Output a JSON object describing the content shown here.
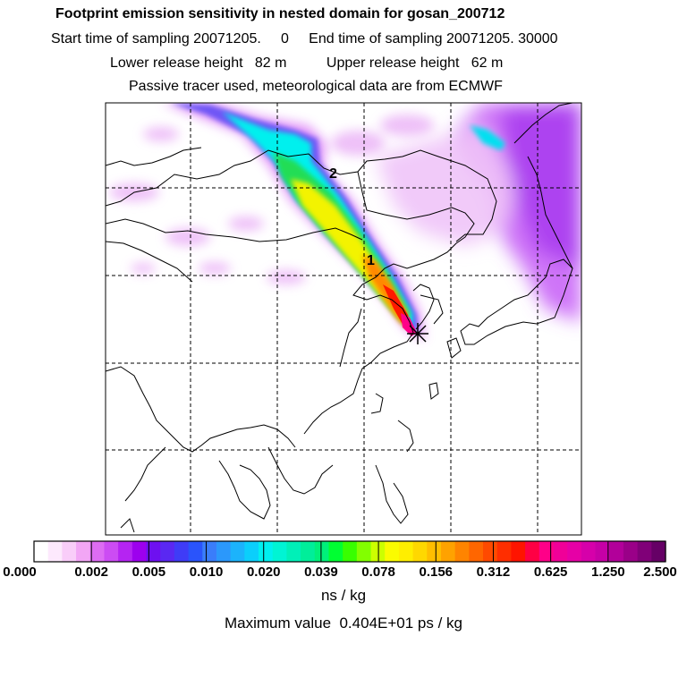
{
  "header": {
    "title": "Footprint emission sensitivity in nested domain for gosan_200712",
    "line1": "Start time of sampling 20071205.     0     End time of sampling 20071205. 30000",
    "line2": "Lower release height   82 m          Upper release height   62 m",
    "line3": "Passive tracer used, meteorological data are from ECMWF"
  },
  "map": {
    "track_labels": [
      "2",
      "1"
    ],
    "colors": {
      "plume_core": "#ff0000",
      "plume_yellow": "#ffee00",
      "plume_green": "#22dd22",
      "plume_cyan": "#00ffee",
      "haze_purple": "#cc66ff",
      "coastline": "#000000"
    }
  },
  "colorbar": {
    "tick_labels": [
      "0.000",
      "0.002",
      "0.005",
      "0.010",
      "0.020",
      "0.039",
      "0.078",
      "0.156",
      "0.312",
      "0.625",
      "1.250",
      "2.500"
    ],
    "segment_colors": [
      "#ffffff",
      "#fde9fd",
      "#f9cdf9",
      "#f2a6f5",
      "#dd6cf3",
      "#cc4cf3",
      "#b524f2",
      "#9d00ee",
      "#6e10f0",
      "#5a28f2",
      "#3f3cf7",
      "#2a54fb",
      "#3a7dfa",
      "#2b98fb",
      "#1cb3fb",
      "#0bcffb",
      "#00f0f0",
      "#00f4d4",
      "#00f0b8",
      "#00ee9a",
      "#00f07a",
      "#00ff32",
      "#38ff00",
      "#82ff00",
      "#ccff00",
      "#fbfb00",
      "#ffee00",
      "#ffd800",
      "#ffbe00",
      "#ffa200",
      "#ff8400",
      "#ff6600",
      "#ff4a00",
      "#ff2e00",
      "#ff1400",
      "#ff0044",
      "#ff0088",
      "#f00098",
      "#e600a6",
      "#d600aa",
      "#c600a6",
      "#b2009a",
      "#9a0088",
      "#800078",
      "#660066"
    ],
    "units": "ns / kg",
    "max_value": "Maximum value  0.404E+01 ps / kg"
  }
}
